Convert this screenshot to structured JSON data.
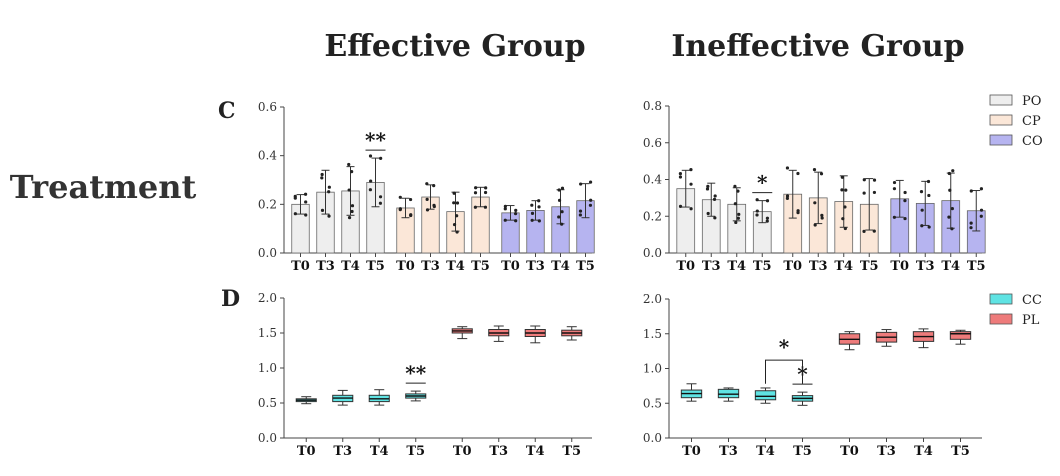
{
  "titles": {
    "effective": "Effective Group",
    "ineffective": "Ineffective Group",
    "row": "Treatment",
    "panel_c": "C",
    "panel_d": "D"
  },
  "colors": {
    "PO": "#eeeeee",
    "CP": "#fbe7d8",
    "CO": "#b6b4f0",
    "CC": "#5fe3e3",
    "PL": "#ee7b7b"
  },
  "legends": {
    "bar": [
      "PO",
      "CP",
      "CO"
    ],
    "box": [
      "CC",
      "PL"
    ]
  },
  "chart_data": [
    {
      "id": "C-effective",
      "type": "bar",
      "categories": [
        "T0",
        "T3",
        "T4",
        "T5"
      ],
      "series": [
        {
          "name": "PO",
          "values": [
            0.2,
            0.25,
            0.255,
            0.29
          ],
          "errors": [
            0.04,
            0.09,
            0.1,
            0.1
          ]
        },
        {
          "name": "CP",
          "values": [
            0.185,
            0.23,
            0.17,
            0.23
          ],
          "errors": [
            0.04,
            0.05,
            0.08,
            0.04
          ]
        },
        {
          "name": "CO",
          "values": [
            0.165,
            0.175,
            0.19,
            0.215
          ],
          "errors": [
            0.03,
            0.04,
            0.07,
            0.07
          ]
        }
      ],
      "ylim": [
        0,
        0.6
      ],
      "yticks": [
        "0.0",
        "0.2",
        "0.4",
        "0.6"
      ],
      "annotations": [
        {
          "series": "PO",
          "category": "T5",
          "text": "**"
        }
      ]
    },
    {
      "id": "C-ineffective",
      "type": "bar",
      "categories": [
        "T0",
        "T3",
        "T4",
        "T5"
      ],
      "series": [
        {
          "name": "PO",
          "values": [
            0.35,
            0.29,
            0.265,
            0.225
          ],
          "errors": [
            0.1,
            0.09,
            0.09,
            0.06
          ]
        },
        {
          "name": "CP",
          "values": [
            0.32,
            0.3,
            0.28,
            0.265
          ],
          "errors": [
            0.13,
            0.14,
            0.14,
            0.14
          ]
        },
        {
          "name": "CO",
          "values": [
            0.295,
            0.27,
            0.285,
            0.23
          ],
          "errors": [
            0.1,
            0.12,
            0.15,
            0.11
          ]
        }
      ],
      "ylim": [
        0,
        0.8
      ],
      "yticks": [
        "0.0",
        "0.2",
        "0.4",
        "0.6",
        "0.8"
      ],
      "annotations": [
        {
          "series": "PO",
          "category": "T5",
          "text": "*"
        }
      ]
    },
    {
      "id": "D-effective",
      "type": "box",
      "categories": [
        "T0",
        "T3",
        "T4",
        "T5"
      ],
      "series": [
        {
          "name": "CC",
          "boxes": [
            [
              0.49,
              0.52,
              0.54,
              0.56,
              0.59
            ],
            [
              0.47,
              0.52,
              0.57,
              0.61,
              0.68
            ],
            [
              0.47,
              0.52,
              0.56,
              0.61,
              0.69
            ],
            [
              0.53,
              0.57,
              0.6,
              0.63,
              0.67
            ]
          ]
        },
        {
          "name": "PL",
          "boxes": [
            [
              1.42,
              1.5,
              1.53,
              1.56,
              1.59
            ],
            [
              1.38,
              1.46,
              1.5,
              1.55,
              1.6
            ],
            [
              1.36,
              1.45,
              1.5,
              1.55,
              1.6
            ],
            [
              1.4,
              1.46,
              1.5,
              1.54,
              1.59
            ]
          ]
        }
      ],
      "ylim": [
        0,
        2
      ],
      "yticks": [
        "0.0",
        "0.5",
        "1.0",
        "1.5",
        "2.0"
      ],
      "annotations": [
        {
          "series": "CC",
          "category": "T5",
          "text": "**"
        }
      ]
    },
    {
      "id": "D-ineffective",
      "type": "box",
      "categories": [
        "T0",
        "T3",
        "T4",
        "T5"
      ],
      "series": [
        {
          "name": "CC",
          "boxes": [
            [
              0.53,
              0.58,
              0.64,
              0.69,
              0.78
            ],
            [
              0.53,
              0.58,
              0.63,
              0.7,
              0.72
            ],
            [
              0.5,
              0.55,
              0.6,
              0.68,
              0.72
            ],
            [
              0.47,
              0.53,
              0.57,
              0.61,
              0.66
            ]
          ]
        },
        {
          "name": "PL",
          "boxes": [
            [
              1.27,
              1.35,
              1.42,
              1.5,
              1.53
            ],
            [
              1.32,
              1.38,
              1.45,
              1.52,
              1.56
            ],
            [
              1.3,
              1.39,
              1.46,
              1.53,
              1.57
            ],
            [
              1.35,
              1.42,
              1.5,
              1.53,
              1.55
            ]
          ]
        }
      ],
      "ylim": [
        0,
        2
      ],
      "yticks": [
        "0.0",
        "0.5",
        "1.0",
        "1.5",
        "2.0"
      ],
      "annotations": [
        {
          "series": "CC",
          "category": "T5",
          "text": "*"
        },
        {
          "series": "CC",
          "bracket": [
            "T4",
            "T5"
          ],
          "text": "*"
        }
      ]
    }
  ]
}
